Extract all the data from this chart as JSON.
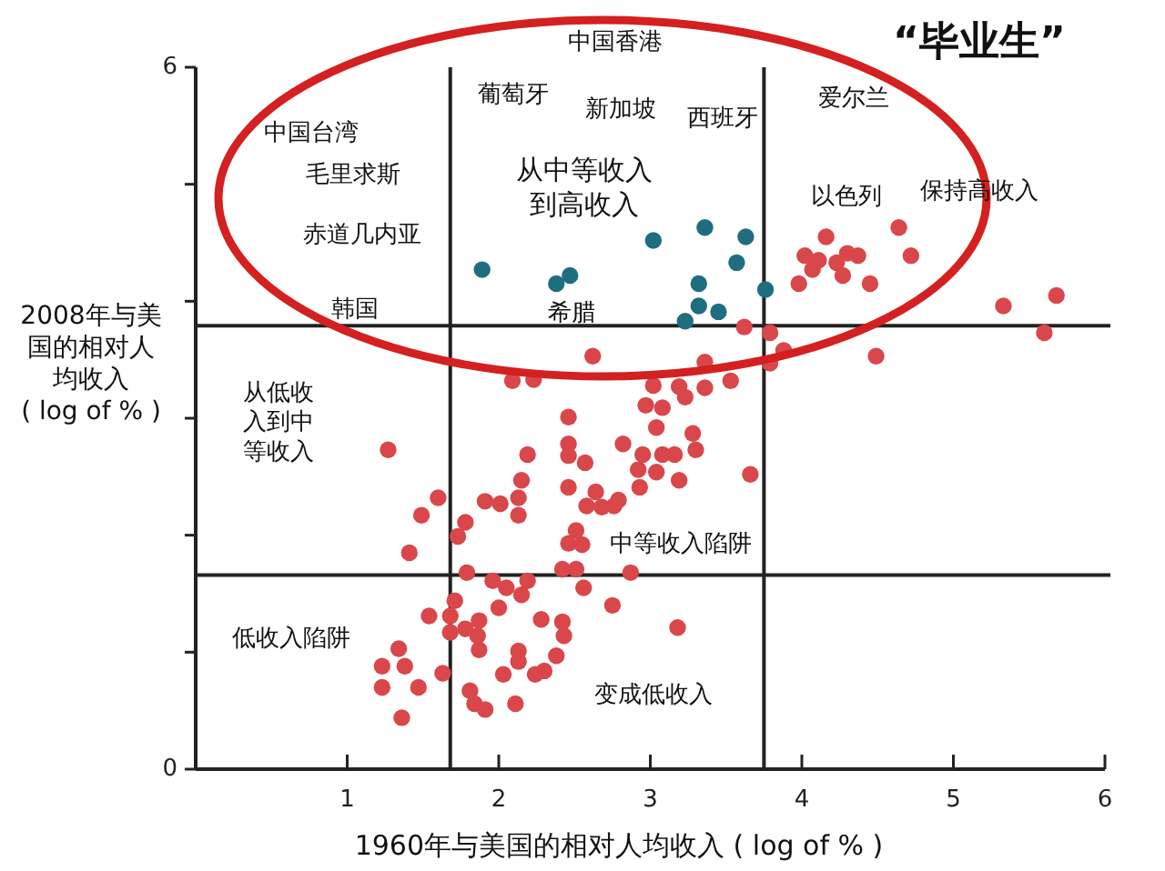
{
  "chart_data": {
    "type": "scatter",
    "title": "“毕业生”",
    "xlabel": "1960年与美国的相对人均收入 ( log of % )",
    "ylabel": "2008年与美国的相对人均收入( log of % )",
    "xlim": [
      0,
      6
    ],
    "ylim": [
      0,
      6
    ],
    "xticks": [
      1,
      2,
      3,
      4,
      5,
      6
    ],
    "yticks": [
      0,
      {
        "value": 1,
        "label": null
      },
      {
        "value": 2,
        "label": null
      },
      {
        "value": 3,
        "label": null
      },
      {
        "value": 4,
        "label": null
      },
      {
        "value": 5,
        "label": null
      },
      6
    ],
    "marker": "circle",
    "series": [
      {
        "color": "#1f6e80",
        "x": [
          1.89,
          2.38,
          2.47,
          3.02,
          3.36,
          3.63,
          3.57,
          3.32,
          3.32,
          3.45,
          3.23,
          3.76
        ],
        "values": [
          4.27,
          4.15,
          4.22,
          4.52,
          4.63,
          4.55,
          4.33,
          4.15,
          3.96,
          3.91,
          3.83,
          4.1
        ]
      },
      {
        "color": "#d9474a",
        "x": [
          4.16,
          4.64,
          4.72,
          4.02,
          4.11,
          4.07,
          4.23,
          4.3,
          4.37,
          4.27,
          4.45,
          3.98,
          5.33,
          5.68,
          5.6,
          3.62,
          3.79,
          4.49,
          2.62,
          2.09,
          2.23,
          3.36,
          3.53,
          3.02,
          3.88,
          3.79,
          3.19,
          3.23,
          3.36,
          2.97,
          3.08,
          2.46,
          3.04,
          3.28,
          2.46,
          2.82,
          3.3,
          1.27,
          2.19,
          2.46,
          2.57,
          2.95,
          3.08,
          3.16,
          2.92,
          3.04,
          3.66,
          3.19,
          2.15,
          2.46,
          2.93,
          2.64,
          2.13,
          1.6,
          1.91,
          2.01,
          2.58,
          2.68,
          2.76,
          2.79,
          2.13,
          1.49,
          1.78,
          1.73,
          2.51,
          2.46,
          2.55,
          1.41,
          1.79,
          2.42,
          2.51,
          2.87,
          1.96,
          2.05,
          2.19,
          2.15,
          2.56,
          1.71,
          2.75,
          2.0,
          1.54,
          1.68,
          1.87,
          2.28,
          2.42,
          1.78,
          1.86,
          1.68,
          2.43,
          3.18,
          1.34,
          1.87,
          2.13,
          2.13,
          2.38,
          1.23,
          1.38,
          1.63,
          2.03,
          2.24,
          2.3,
          1.23,
          1.47,
          1.81,
          1.84,
          1.91,
          2.11,
          1.36
        ],
        "values": [
          4.55,
          4.63,
          4.39,
          4.39,
          4.35,
          4.27,
          4.33,
          4.41,
          4.39,
          4.22,
          4.15,
          4.15,
          3.96,
          4.05,
          3.73,
          3.78,
          3.73,
          3.53,
          3.53,
          3.32,
          3.33,
          3.48,
          3.32,
          3.28,
          3.58,
          3.47,
          3.27,
          3.18,
          3.26,
          3.11,
          3.09,
          3.01,
          2.92,
          2.87,
          2.78,
          2.78,
          2.73,
          2.73,
          2.69,
          2.68,
          2.62,
          2.69,
          2.69,
          2.69,
          2.56,
          2.54,
          2.52,
          2.47,
          2.47,
          2.41,
          2.41,
          2.37,
          2.32,
          2.32,
          2.29,
          2.27,
          2.25,
          2.24,
          2.25,
          2.3,
          2.17,
          2.17,
          2.11,
          1.99,
          2.04,
          1.93,
          1.92,
          1.85,
          1.68,
          1.71,
          1.71,
          1.68,
          1.61,
          1.55,
          1.61,
          1.49,
          1.55,
          1.44,
          1.4,
          1.38,
          1.31,
          1.31,
          1.27,
          1.28,
          1.26,
          1.2,
          1.14,
          1.17,
          1.14,
          1.21,
          1.03,
          1.02,
          1.01,
          0.92,
          0.97,
          0.88,
          0.88,
          0.82,
          0.81,
          0.81,
          0.84,
          0.7,
          0.7,
          0.67,
          0.56,
          0.51,
          0.56,
          0.44
        ]
      }
    ],
    "ref_lines": [
      {
        "axis": "x",
        "value": 1.68,
        "color": "#222222"
      },
      {
        "axis": "x",
        "value": 3.75,
        "color": "#222222"
      },
      {
        "axis": "y",
        "value": 3.79,
        "color": "#222222"
      },
      {
        "axis": "y",
        "value": 1.66,
        "color": "#222222"
      }
    ],
    "annotations": [
      "中国香港",
      "葡萄牙",
      "新加坡",
      "西班牙",
      "爱尔兰",
      "中国台湾",
      "毛里求斯",
      "从中等收入到高收入",
      "以色列",
      "保持高收入",
      "赤道几内亚",
      "韩国",
      "希腊",
      "从低收入到中等收入",
      "中等收入陷阱",
      "低收入陷阱",
      "变成低收入"
    ]
  }
}
